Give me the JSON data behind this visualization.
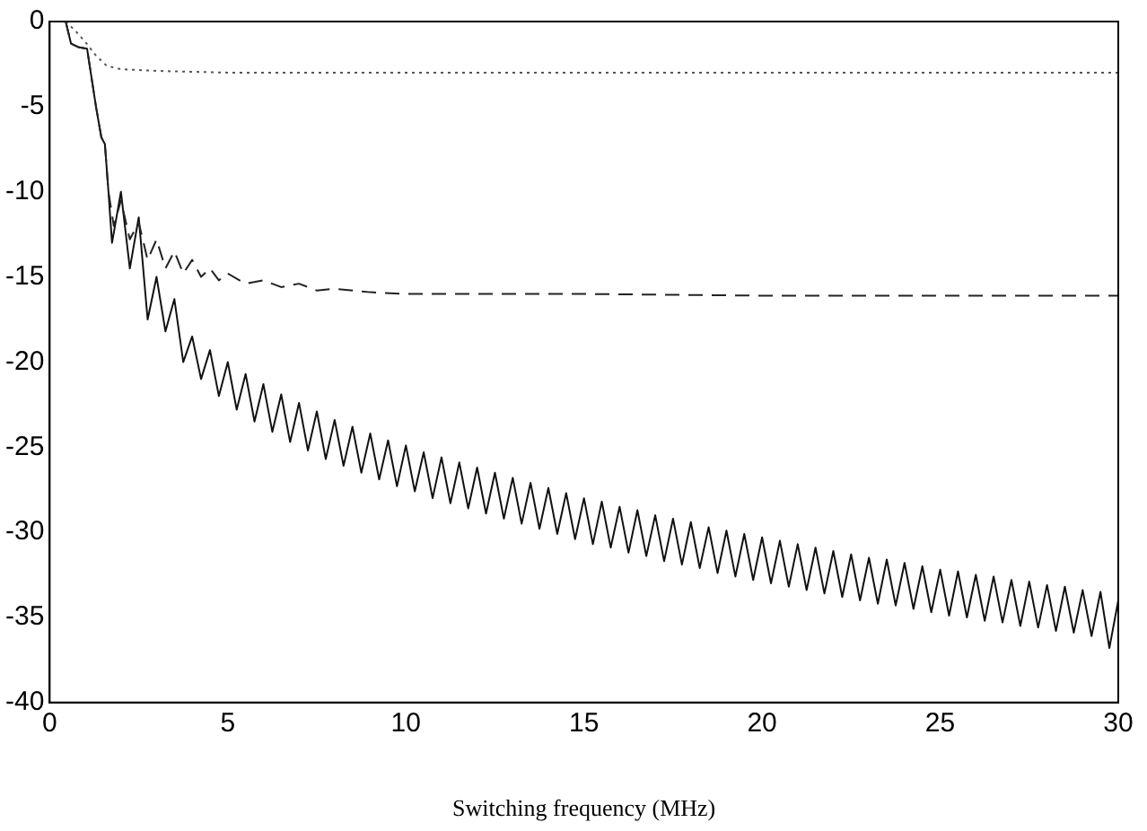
{
  "chart_data": {
    "type": "line",
    "xlabel": "Switching frequency (MHz)",
    "xlim": [
      0,
      30
    ],
    "ylim": [
      -40,
      0
    ],
    "xticks": [
      0,
      5,
      10,
      15,
      20,
      25,
      30
    ],
    "yticks": [
      -40,
      -35,
      -30,
      -25,
      -20,
      -15,
      -10,
      -5,
      0
    ],
    "grid": false,
    "legend": false,
    "marker": "none",
    "series": [
      {
        "color": "#555555",
        "line_style": "dotted",
        "x": [
          0.45,
          0.7,
          1.0,
          1.3,
          1.6,
          2.0,
          3,
          5,
          30
        ],
        "values": [
          0,
          -0.5,
          -1.2,
          -2.0,
          -2.6,
          -2.8,
          -2.9,
          -3,
          -3
        ]
      },
      {
        "color": "#222222",
        "line_style": "dashed",
        "x": [
          0.45,
          0.6,
          0.8,
          1.05,
          1.3,
          1.45,
          1.55,
          1.65,
          1.8,
          2.0,
          2.25,
          2.5,
          2.75,
          3.0,
          3.25,
          3.5,
          3.75,
          4.0,
          4.25,
          4.5,
          4.75,
          5.0,
          5.5,
          6,
          6.5,
          7,
          7.5,
          8,
          9,
          10,
          15,
          20,
          25,
          30
        ],
        "values": [
          0,
          -1.3,
          -1.5,
          -1.6,
          -5,
          -6.8,
          -7.2,
          -10,
          -12,
          -10.5,
          -12.8,
          -11.8,
          -14,
          -12.8,
          -14.5,
          -13.5,
          -14.8,
          -14,
          -15,
          -14.5,
          -15.2,
          -14.8,
          -15.4,
          -15.2,
          -15.6,
          -15.4,
          -15.8,
          -15.7,
          -15.9,
          -16,
          -16,
          -16.1,
          -16.1,
          -16.1
        ]
      },
      {
        "color": "#111111",
        "line_style": "solid",
        "x": [
          0.45,
          0.6,
          0.8,
          1.05,
          1.3,
          1.45,
          1.55,
          1.65,
          1.75,
          2.0,
          2.25,
          2.5,
          2.75,
          3.0,
          3.25,
          3.5,
          3.75,
          4.0,
          4.25,
          4.5,
          4.75,
          5.0,
          5.25,
          5.5,
          5.75,
          6.0,
          6.25,
          6.5,
          6.75,
          7.0,
          7.25,
          7.5,
          7.75,
          8.0,
          8.25,
          8.5,
          8.75,
          9.0,
          9.25,
          9.5,
          9.75,
          10.0,
          10.25,
          10.5,
          10.75,
          11.0,
          11.25,
          11.5,
          11.75,
          12.0,
          12.25,
          12.5,
          12.75,
          13.0,
          13.25,
          13.5,
          13.75,
          14.0,
          14.25,
          14.5,
          14.75,
          15.0,
          15.25,
          15.5,
          15.75,
          16.0,
          16.25,
          16.5,
          16.75,
          17.0,
          17.25,
          17.5,
          17.75,
          18.0,
          18.25,
          18.5,
          18.75,
          19.0,
          19.25,
          19.5,
          19.75,
          20.0,
          20.25,
          20.5,
          20.75,
          21.0,
          21.25,
          21.5,
          21.75,
          22.0,
          22.25,
          22.5,
          22.75,
          23.0,
          23.25,
          23.5,
          23.75,
          24.0,
          24.25,
          24.5,
          24.75,
          25.0,
          25.25,
          25.5,
          25.75,
          26.0,
          26.25,
          26.5,
          26.75,
          27.0,
          27.25,
          27.5,
          27.75,
          28.0,
          28.25,
          28.5,
          28.75,
          29.0,
          29.25,
          29.5,
          29.75,
          30.0
        ],
        "values": [
          0,
          -1.3,
          -1.5,
          -1.6,
          -5,
          -6.8,
          -7.2,
          -10,
          -13,
          -10,
          -14.5,
          -11.5,
          -17.5,
          -15,
          -18.2,
          -16.3,
          -20,
          -18.5,
          -21,
          -19.3,
          -22,
          -20,
          -22.8,
          -20.7,
          -23.5,
          -21.3,
          -24.1,
          -21.9,
          -24.7,
          -22.4,
          -25.2,
          -22.9,
          -25.7,
          -23.4,
          -26.1,
          -23.8,
          -26.5,
          -24.2,
          -26.9,
          -24.6,
          -27.3,
          -24.9,
          -27.6,
          -25.3,
          -28.0,
          -25.6,
          -28.3,
          -25.9,
          -28.6,
          -26.2,
          -28.9,
          -26.5,
          -29.2,
          -26.8,
          -29.5,
          -27.1,
          -29.8,
          -27.4,
          -30.1,
          -27.7,
          -30.4,
          -28.0,
          -30.7,
          -28.2,
          -30.9,
          -28.5,
          -31.2,
          -28.7,
          -31.4,
          -29.0,
          -31.7,
          -29.2,
          -31.9,
          -29.4,
          -32.1,
          -29.7,
          -32.4,
          -29.9,
          -32.6,
          -30.1,
          -32.8,
          -30.3,
          -33.0,
          -30.5,
          -33.2,
          -30.7,
          -33.4,
          -30.9,
          -33.6,
          -31.1,
          -33.8,
          -31.3,
          -34.0,
          -31.5,
          -34.2,
          -31.6,
          -34.3,
          -31.8,
          -34.5,
          -32.0,
          -34.7,
          -32.2,
          -34.9,
          -32.3,
          -35.0,
          -32.5,
          -35.2,
          -32.6,
          -35.3,
          -32.8,
          -35.5,
          -32.9,
          -35.6,
          -33.1,
          -35.8,
          -33.2,
          -35.9,
          -33.4,
          -36.1,
          -33.5,
          -36.8,
          -34.0
        ]
      }
    ]
  }
}
